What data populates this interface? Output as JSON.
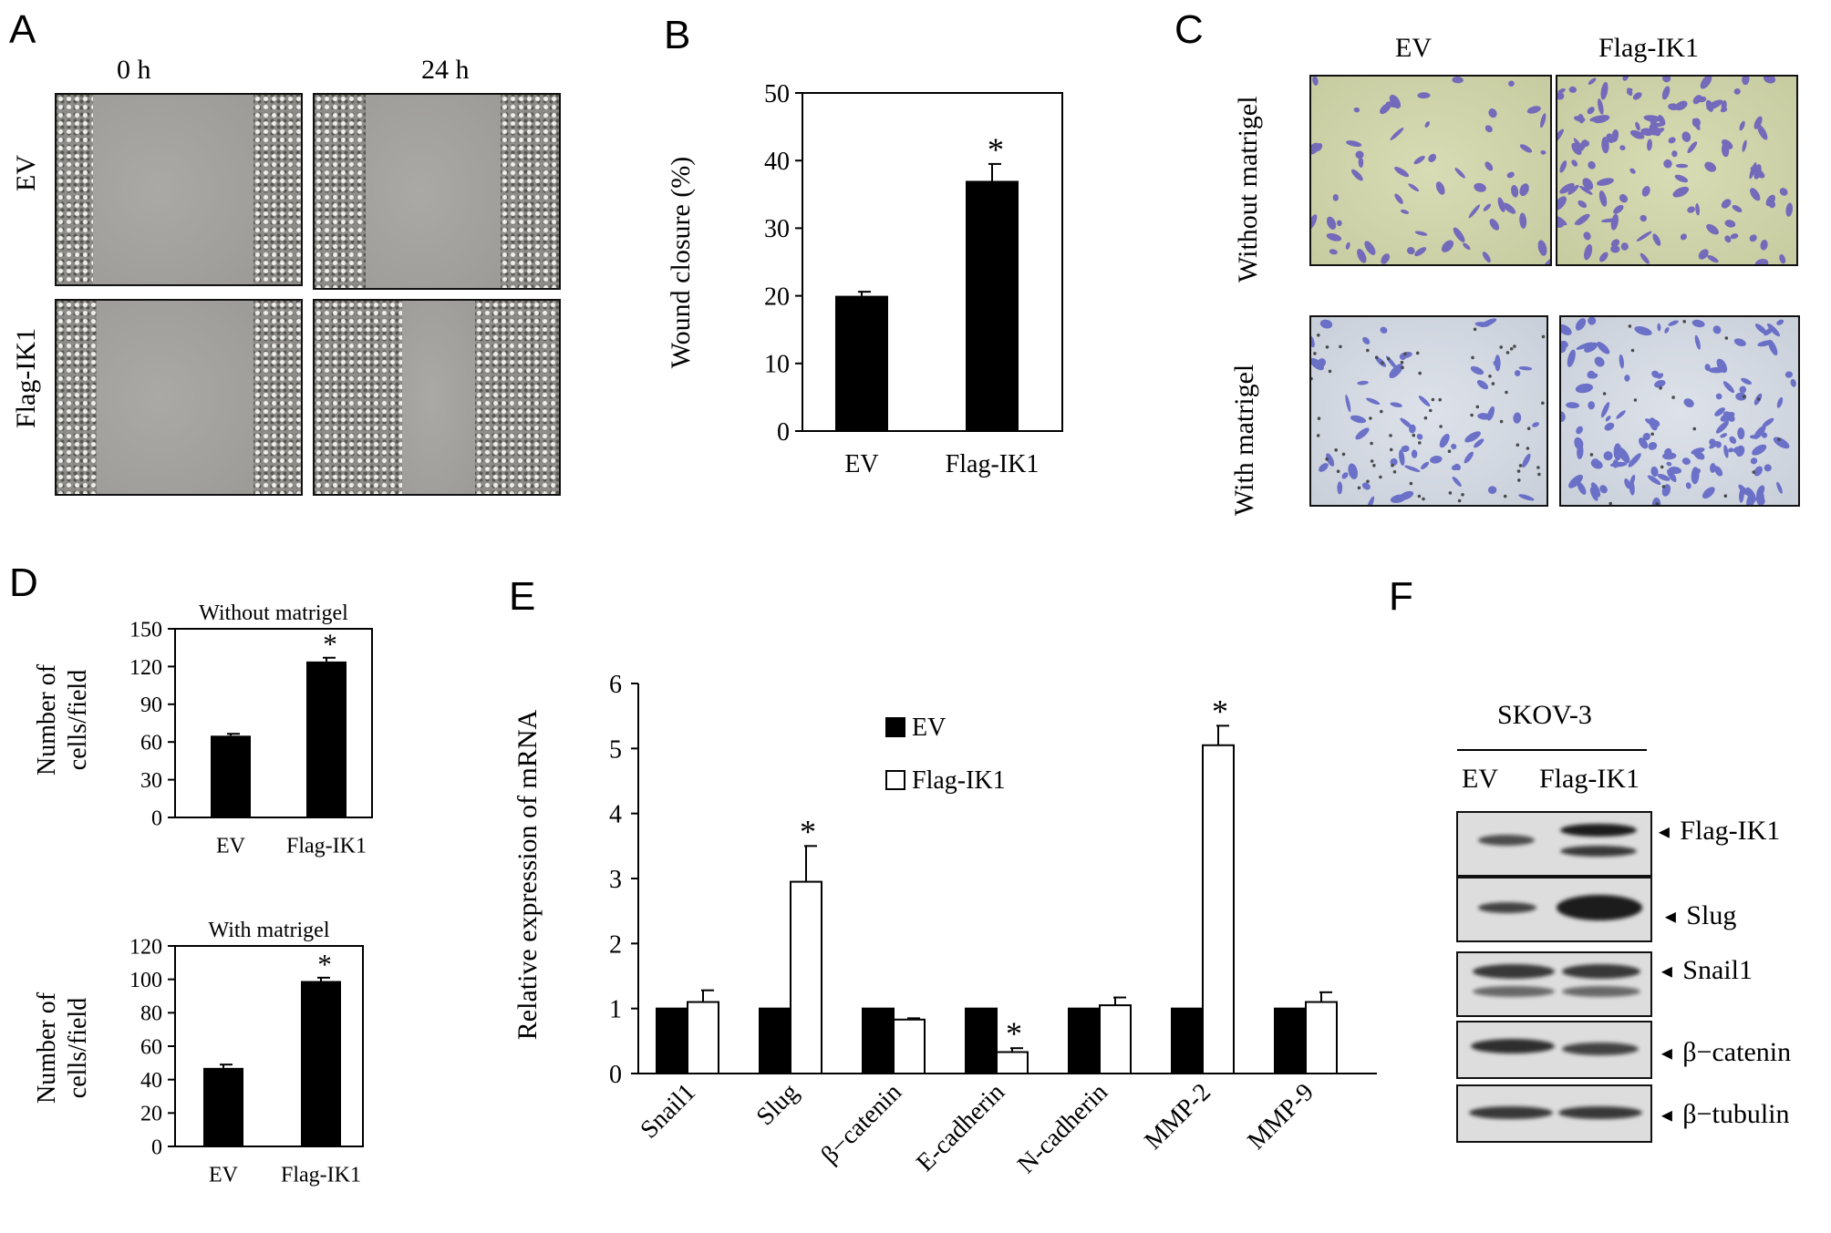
{
  "panels": {
    "A": "A",
    "B": "B",
    "C": "C",
    "D": "D",
    "E": "E",
    "F": "F"
  },
  "panel_a": {
    "col_labels": [
      "0 h",
      "24 h"
    ],
    "row_labels": [
      "EV",
      "Flag-IK1"
    ]
  },
  "panel_c": {
    "col_labels": [
      "EV",
      "Flag-IK1"
    ],
    "row_labels": [
      "Without matrigel",
      "With matrigel"
    ]
  },
  "panel_f": {
    "cell_line": "SKOV-3",
    "lanes": [
      "EV",
      "Flag-IK1"
    ],
    "bands": [
      "Flag-IK1",
      "Slug",
      "Snail1",
      "β−catenin",
      "β−tubulin"
    ],
    "arrow_glyph": "◄"
  },
  "chart_data": [
    {
      "id": "B",
      "type": "bar",
      "categories": [
        "EV",
        "Flag-IK1"
      ],
      "values": [
        20,
        37
      ],
      "errors": [
        0.6,
        2.5
      ],
      "significance": [
        "",
        "*"
      ],
      "title": "",
      "ylabel": "Wound closure (%)",
      "ylim": [
        0,
        50
      ],
      "yticks": [
        0,
        10,
        20,
        30,
        40,
        50
      ]
    },
    {
      "id": "D-top",
      "type": "bar",
      "title": "Without matrigel",
      "categories": [
        "EV",
        "Flag-IK1"
      ],
      "values": [
        65,
        124
      ],
      "errors": [
        1.5,
        3
      ],
      "significance": [
        "",
        "*"
      ],
      "ylabel": "Number of cells/field",
      "ylim": [
        0,
        150
      ],
      "yticks": [
        0,
        30,
        60,
        90,
        120,
        150
      ]
    },
    {
      "id": "D-bottom",
      "type": "bar",
      "title": "With matrigel",
      "categories": [
        "EV",
        "Flag-IK1"
      ],
      "values": [
        47,
        99
      ],
      "errors": [
        2,
        2
      ],
      "significance": [
        "",
        "*"
      ],
      "ylabel": "Number of cells/field",
      "ylim": [
        0,
        120
      ],
      "yticks": [
        0,
        20,
        40,
        60,
        80,
        100,
        120
      ]
    },
    {
      "id": "E",
      "type": "bar",
      "title": "",
      "categories": [
        "Snail1",
        "Slug",
        "β−catenin",
        "E-cadherin",
        "N-cadherin",
        "MMP-2",
        "MMP-9"
      ],
      "series": [
        {
          "name": "EV",
          "color": "#000000",
          "values": [
            1,
            1,
            1,
            1,
            1,
            1,
            1
          ]
        },
        {
          "name": "Flag-IK1",
          "color": "#ffffff",
          "values": [
            1.1,
            2.95,
            0.83,
            0.33,
            1.05,
            5.05,
            1.1
          ],
          "errors": [
            0.18,
            0.55,
            0.02,
            0.06,
            0.12,
            0.3,
            0.15
          ],
          "significance": [
            "",
            "*",
            "",
            "*",
            "",
            "*",
            ""
          ]
        }
      ],
      "ylabel": "Relative expression of mRNA",
      "ylim": [
        0,
        6
      ],
      "yticks": [
        0,
        1,
        2,
        3,
        4,
        5,
        6
      ],
      "legend": "top-center"
    }
  ]
}
